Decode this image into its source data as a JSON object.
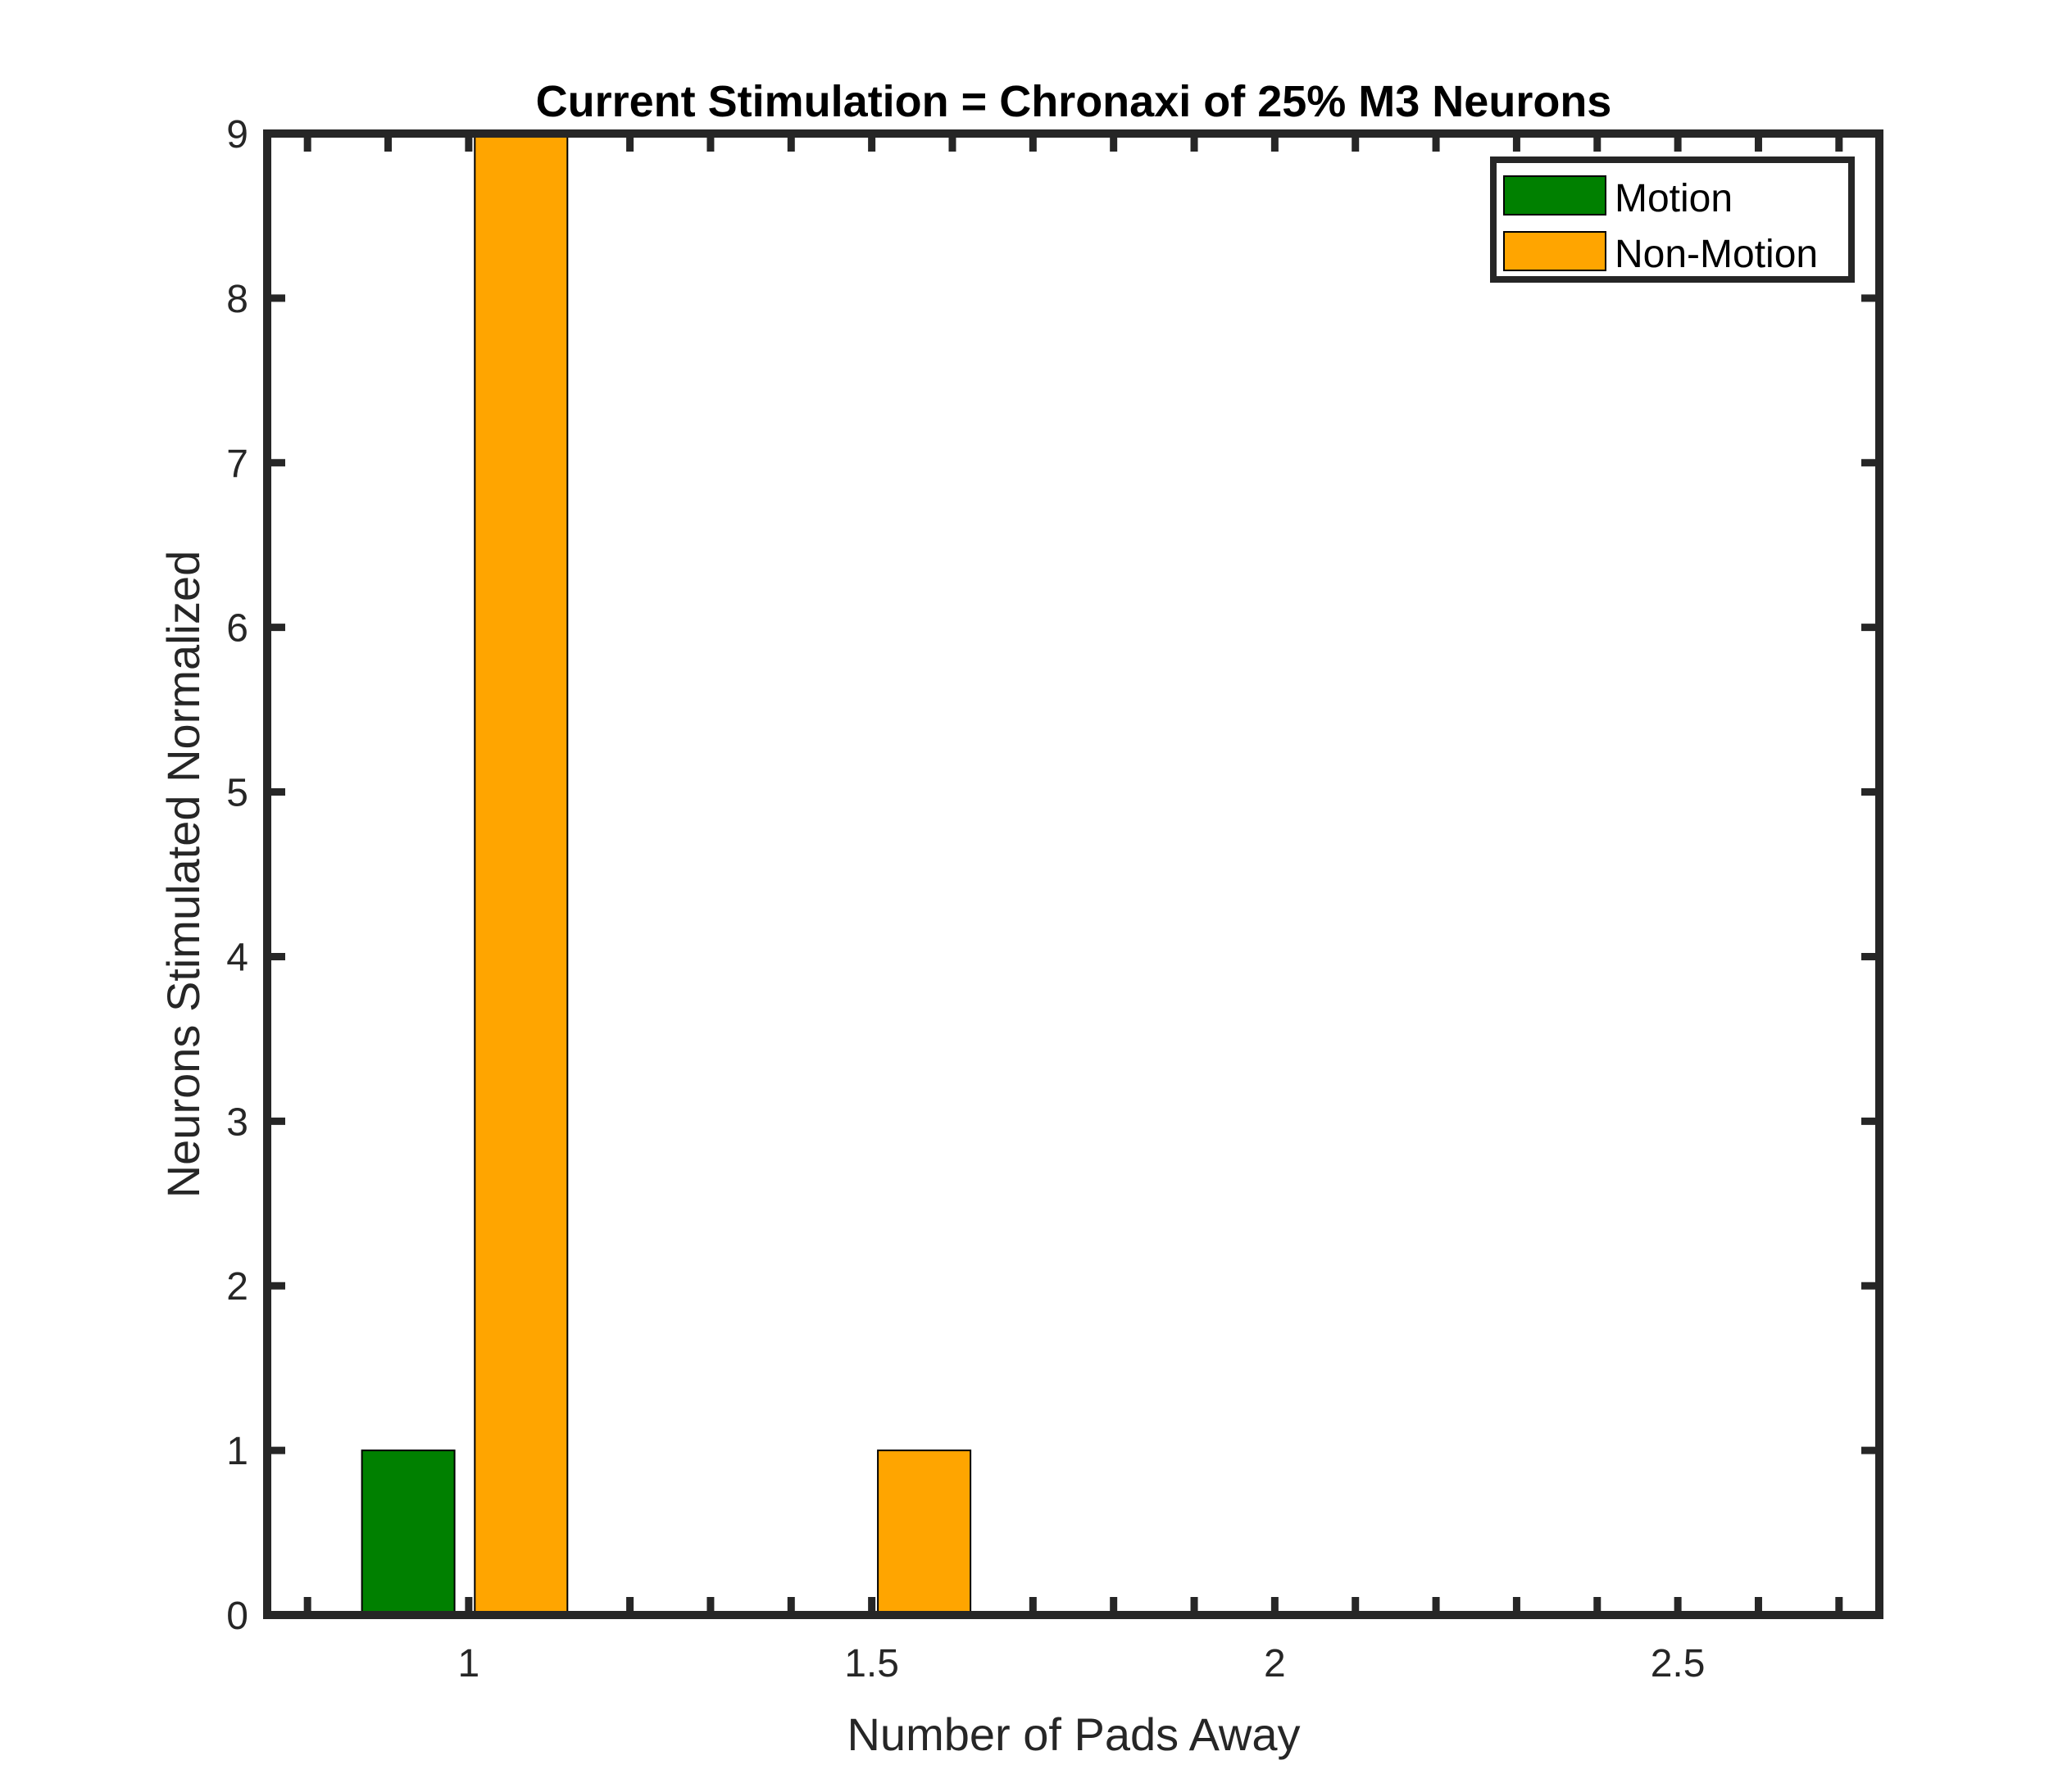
{
  "chart_data": {
    "type": "bar",
    "title": "Current Stimulation = Chronaxi of 25% M3 Neurons",
    "xlabel": "Number of Pads Away",
    "ylabel": "Neurons Stimulated Normalized",
    "xlim": [
      0.75,
      2.75
    ],
    "ylim": [
      0,
      9
    ],
    "xticks": [
      1,
      1.5,
      2,
      2.5
    ],
    "xtick_labels": [
      "1",
      "1.5",
      "2",
      "2.5"
    ],
    "yticks": [
      0,
      1,
      2,
      3,
      4,
      5,
      6,
      7,
      8,
      9
    ],
    "ytick_labels": [
      "0",
      "1",
      "2",
      "3",
      "4",
      "5",
      "6",
      "7",
      "8",
      "9"
    ],
    "grid": false,
    "legend_position": "top-right",
    "series": [
      {
        "name": "Motion",
        "color": "#008000",
        "points": [
          {
            "x": 0.925,
            "y": 1
          }
        ]
      },
      {
        "name": "Non-Motion",
        "color": "#FFA500",
        "points": [
          {
            "x": 1.065,
            "y": 9
          },
          {
            "x": 1.565,
            "y": 1
          }
        ]
      }
    ]
  }
}
